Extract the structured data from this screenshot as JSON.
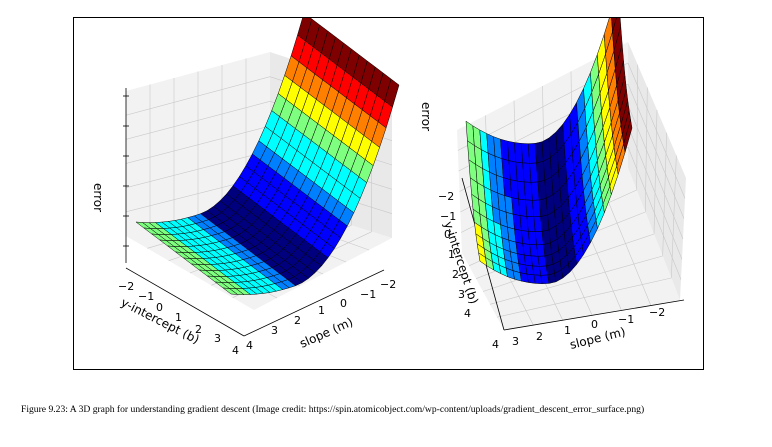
{
  "caption": "Figure 9.23: A 3D graph for understanding gradient descent (Image credit: https://spin.atomicobject.com/wp-content/uploads/gradient_descent_error_surface.png)",
  "chart_data": [
    {
      "type": "surface3d",
      "view": "left",
      "title": "",
      "xlabel": "slope (m)",
      "ylabel": "y-intercept (b)",
      "zlabel": "error",
      "slope_ticks": [
        "4",
        "3",
        "2",
        "1",
        "0",
        "−1",
        "−2"
      ],
      "intercept_ticks": [
        "−2",
        "−1",
        "0",
        "1",
        "2",
        "3",
        "4"
      ],
      "slope_range": [
        -2,
        4
      ],
      "intercept_range": [
        -2,
        4
      ],
      "colormap": [
        "#00007f",
        "#0000ff",
        "#007fff",
        "#00ffff",
        "#7fff7f",
        "#ffff00",
        "#ff7f00",
        "#ff0000",
        "#7f0000"
      ]
    },
    {
      "type": "surface3d",
      "view": "right",
      "title": "",
      "xlabel": "slope (m)",
      "ylabel": "y-intercept (b)",
      "zlabel": "error",
      "slope_ticks": [
        "4",
        "3",
        "2",
        "1",
        "0",
        "−1",
        "−2"
      ],
      "intercept_ticks": [
        "−2",
        "−1",
        "0",
        "1",
        "2",
        "3",
        "4"
      ],
      "slope_range": [
        -2,
        4
      ],
      "intercept_range": [
        -2,
        4
      ],
      "colormap": [
        "#00007f",
        "#0000ff",
        "#007fff",
        "#00ffff",
        "#7fff7f",
        "#ffff00",
        "#ff7f00",
        "#ff0000",
        "#7f0000"
      ]
    }
  ]
}
